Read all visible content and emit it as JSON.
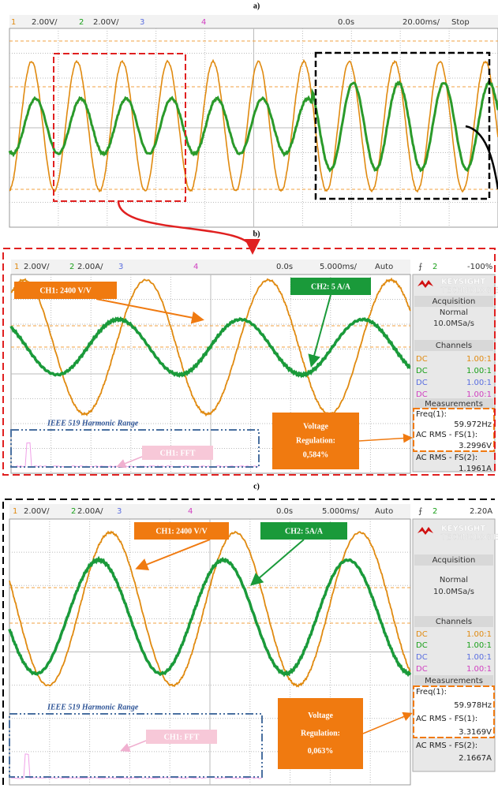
{
  "panels": [
    {
      "label": "a)",
      "header": [
        "1",
        "2.00V/",
        "2",
        "2.00V/",
        "3",
        "4",
        "0.0s",
        "20.00ms/",
        "Stop"
      ]
    },
    {
      "label": "b)",
      "header": [
        "1",
        "2.00V/",
        "2",
        "2.00A/",
        "3",
        "4",
        "0.0s",
        "5.000ms/",
        "Auto",
        "⨍",
        "2",
        "-100%"
      ],
      "annotations": {
        "ch1": "CH1: 2400 V/V",
        "ch2": "CH2: 5 A/A",
        "ieee": "IEEE 519 Harmonic Range",
        "fft": "CH1: FFT",
        "regulation": [
          "Voltage",
          "Regulation:",
          "0,584%"
        ]
      },
      "sidebar": {
        "brand": "KEYSIGHT",
        "brand_sub": "TECHNOLOGIES",
        "acquisition": "Acquisition",
        "mode": "Normal",
        "rate": "10.0MSa/s",
        "channels_title": "Channels",
        "channels": [
          [
            "DC",
            "1.00:1"
          ],
          [
            "DC",
            "1.00:1"
          ],
          [
            "DC",
            "1.00:1"
          ],
          [
            "DC",
            "1.00:1"
          ]
        ],
        "measurements_title": "Measurements",
        "measurements": [
          [
            "Freq(1):",
            "59.972Hz"
          ],
          [
            "AC RMS - FS(1):",
            "3.2996V"
          ],
          [
            "AC RMS - FS(2):",
            "1.1961A"
          ]
        ]
      }
    },
    {
      "label": "c)",
      "header": [
        "1",
        "2.00V/",
        "2",
        "2.00A/",
        "3",
        "4",
        "0.0s",
        "5.000ms/",
        "Auto",
        "⨍",
        "2",
        "2.20A"
      ],
      "annotations": {
        "ch1": "CH1: 2400 V/V",
        "ch2": "CH2: 5A/A",
        "ieee": "IEEE 519 Harmonic Range",
        "fft": "CH1: FFT",
        "regulation": [
          "Voltage",
          "Regulation:",
          "0,063%"
        ]
      },
      "sidebar": {
        "brand": "KEYSIGHT",
        "brand_sub": "TECHNOLOGIES",
        "acquisition": "Acquisition",
        "mode": "Normal",
        "rate": "10.0MSa/s",
        "channels_title": "Channels",
        "channels": [
          [
            "DC",
            "1.00:1"
          ],
          [
            "DC",
            "1.00:1"
          ],
          [
            "DC",
            "1.00:1"
          ],
          [
            "DC",
            "1.00:1"
          ]
        ],
        "measurements_title": "Measurements",
        "measurements": [
          [
            "Freq(1):",
            "59.978Hz"
          ],
          [
            "AC RMS - FS(1):",
            "3.3169V"
          ],
          [
            "AC RMS - FS(2):",
            "2.1667A"
          ]
        ]
      }
    }
  ]
}
